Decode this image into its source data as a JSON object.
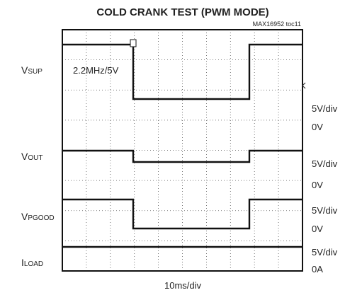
{
  "title": "COLD CRANK TEST (PWM MODE)",
  "figure_id": "MAX16952 toc11",
  "annotation": "2.2MHz/5V",
  "channels": [
    {
      "name": "V",
      "sub": "SUP"
    },
    {
      "name": "V",
      "sub": "OUT"
    },
    {
      "name": "V",
      "sub": "PGOOD"
    },
    {
      "name": "I",
      "sub": "LOAD"
    }
  ],
  "scales": [
    "5V/div",
    "0V",
    "5V/div",
    "0V",
    "5V/div",
    "0V",
    "5V/div",
    "0A"
  ],
  "timebase": "10ms/div"
}
